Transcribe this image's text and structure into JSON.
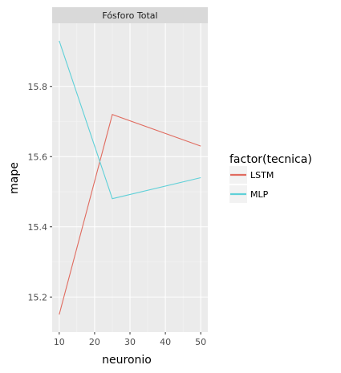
{
  "chart_data": {
    "type": "line",
    "facet_title": "Fósforo Total",
    "xlabel": "neuronio",
    "ylabel": "mape",
    "x": [
      10,
      25,
      50
    ],
    "xlim": [
      8,
      52
    ],
    "ylim": [
      15.1,
      15.98
    ],
    "xticks": [
      10,
      20,
      30,
      40,
      50
    ],
    "yticks": [
      15.2,
      15.4,
      15.6,
      15.8
    ],
    "xtick_labels": [
      "10",
      "20",
      "30",
      "40",
      "50"
    ],
    "ytick_labels": [
      "15.2",
      "15.4",
      "15.6",
      "15.8"
    ],
    "legend": {
      "title": "factor(tecnica)",
      "position": "right"
    },
    "grid": true,
    "series": [
      {
        "name": "LSTM",
        "color": "#e06b5f",
        "values": [
          15.15,
          15.72,
          15.63
        ]
      },
      {
        "name": "MLP",
        "color": "#5fd0d8",
        "values": [
          15.93,
          15.48,
          15.54
        ]
      }
    ]
  }
}
